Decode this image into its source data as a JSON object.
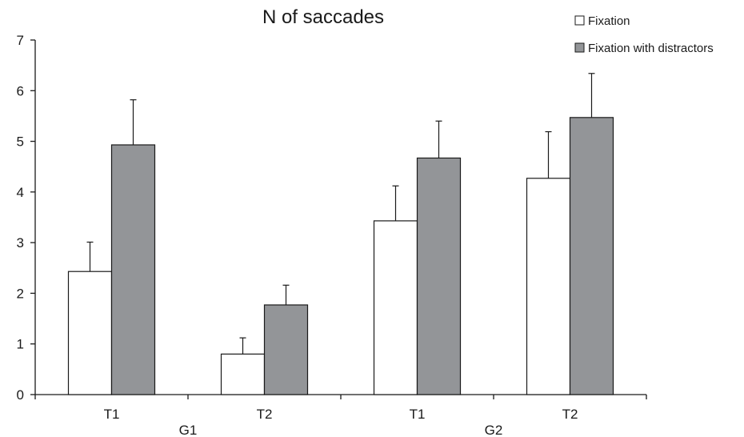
{
  "chart_data": {
    "type": "bar",
    "title": "N of saccades",
    "xlabel": "",
    "ylabel": "",
    "ylim": [
      0,
      7
    ],
    "yticks": [
      0,
      1,
      2,
      3,
      4,
      5,
      6,
      7
    ],
    "grid": false,
    "legend_position": "top-right",
    "groups": [
      {
        "label": "G1",
        "categories": [
          "T1",
          "T2"
        ]
      },
      {
        "label": "G2",
        "categories": [
          "T1",
          "T2"
        ]
      }
    ],
    "categories": [
      "T1",
      "T2",
      "T1",
      "T2"
    ],
    "series": [
      {
        "name": "Fixation",
        "color": "#ffffff",
        "values": [
          2.43,
          0.8,
          3.43,
          4.27
        ],
        "errors": [
          0.58,
          0.32,
          0.69,
          0.92
        ]
      },
      {
        "name": "Fixation with distractors",
        "color": "#939598",
        "values": [
          4.93,
          1.77,
          4.67,
          5.47
        ],
        "errors": [
          0.89,
          0.39,
          0.73,
          0.87
        ]
      }
    ]
  }
}
